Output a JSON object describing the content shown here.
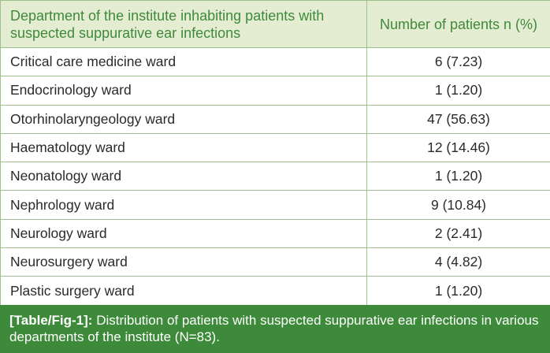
{
  "table": {
    "headers": [
      "Department of the institute inhabiting patients with suspected suppurative ear infections",
      "Number of patients n (%)"
    ],
    "rows": [
      {
        "department": "Critical care medicine ward",
        "patients": "6 (7.23)"
      },
      {
        "department": "Endocrinology ward",
        "patients": "1 (1.20)"
      },
      {
        "department": "Otorhinolaryngeology ward",
        "patients": "47 (56.63)"
      },
      {
        "department": "Haematology ward",
        "patients": "12 (14.46)"
      },
      {
        "department": "Neonatology ward",
        "patients": "1 (1.20)"
      },
      {
        "department": "Nephrology ward",
        "patients": "9 (10.84)"
      },
      {
        "department": "Neurology ward",
        "patients": "2 (2.41)"
      },
      {
        "department": "Neurosurgery ward",
        "patients": "4 (4.82)"
      },
      {
        "department": "Plastic surgery ward",
        "patients": "1 (1.20)"
      }
    ]
  },
  "caption": {
    "label": "[Table/Fig-1]:",
    "text": "Distribution of patients with suspected suppurative ear infections in various departments of the institute (N=83)."
  },
  "colors": {
    "header_background": "#e4edd2",
    "header_text": "#3e8a3a",
    "border": "#9ec08e",
    "caption_background": "#3d8b3a"
  }
}
